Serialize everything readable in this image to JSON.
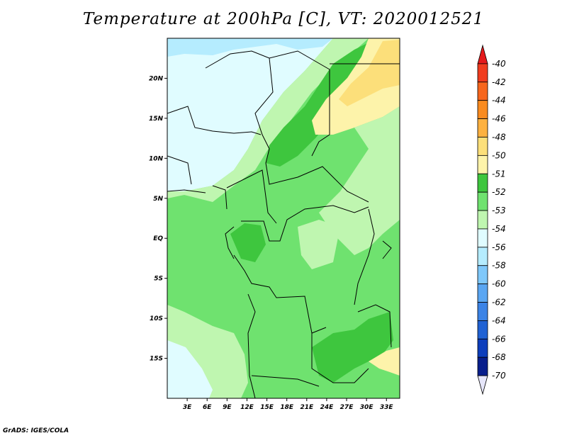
{
  "title": "Temperature at 200hPa [C], VT: 2020012521",
  "footer": "GrADS: IGES/COLA",
  "map": {
    "lon_ticks": [
      "3E",
      "6E",
      "9E",
      "12E",
      "15E",
      "18E",
      "21E",
      "24E",
      "27E",
      "30E",
      "33E"
    ],
    "lat_ticks": [
      "20N",
      "15N",
      "10N",
      "5N",
      "EQ",
      "5S",
      "10S",
      "15S"
    ],
    "lon_values": [
      3,
      6,
      9,
      12,
      15,
      18,
      21,
      24,
      27,
      30,
      33
    ],
    "lat_values": [
      20,
      15,
      10,
      5,
      0,
      -5,
      -10,
      -15
    ],
    "lon_range": [
      0,
      35
    ],
    "lat_range": [
      -20,
      25
    ]
  },
  "colorbar": {
    "labels": [
      "-40",
      "-42",
      "-44",
      "-46",
      "-48",
      "-50",
      "-51",
      "-52",
      "-53",
      "-54",
      "-56",
      "-58",
      "-60",
      "-62",
      "-64",
      "-66",
      "-68",
      "-70"
    ],
    "colors": [
      "#e41a1c",
      "#f03c1e",
      "#f7661d",
      "#fa8b1f",
      "#fdb140",
      "#fcdf7a",
      "#fdf3aa",
      "#3ec63e",
      "#6fe26f",
      "#bff6b0",
      "#e0fcff",
      "#b5ecfe",
      "#7fc8fa",
      "#5aa6f2",
      "#3b83e6",
      "#2062d4",
      "#0d3ebc",
      "#081e8c",
      "#e6e6fa"
    ]
  },
  "chart_data": {
    "type": "heatmap",
    "title": "Temperature at 200hPa [C], VT: 2020012521",
    "x_ticks": [
      "3E",
      "6E",
      "9E",
      "12E",
      "15E",
      "18E",
      "21E",
      "24E",
      "27E",
      "30E",
      "33E"
    ],
    "y_ticks": [
      "20N",
      "15N",
      "10N",
      "5N",
      "EQ",
      "5S",
      "10S",
      "15S"
    ],
    "levels": [
      -70,
      -68,
      -66,
      -64,
      -62,
      -60,
      -58,
      -56,
      -54,
      -53,
      -52,
      -51,
      -50,
      -48,
      -46,
      -44,
      -42,
      -40
    ]
  }
}
